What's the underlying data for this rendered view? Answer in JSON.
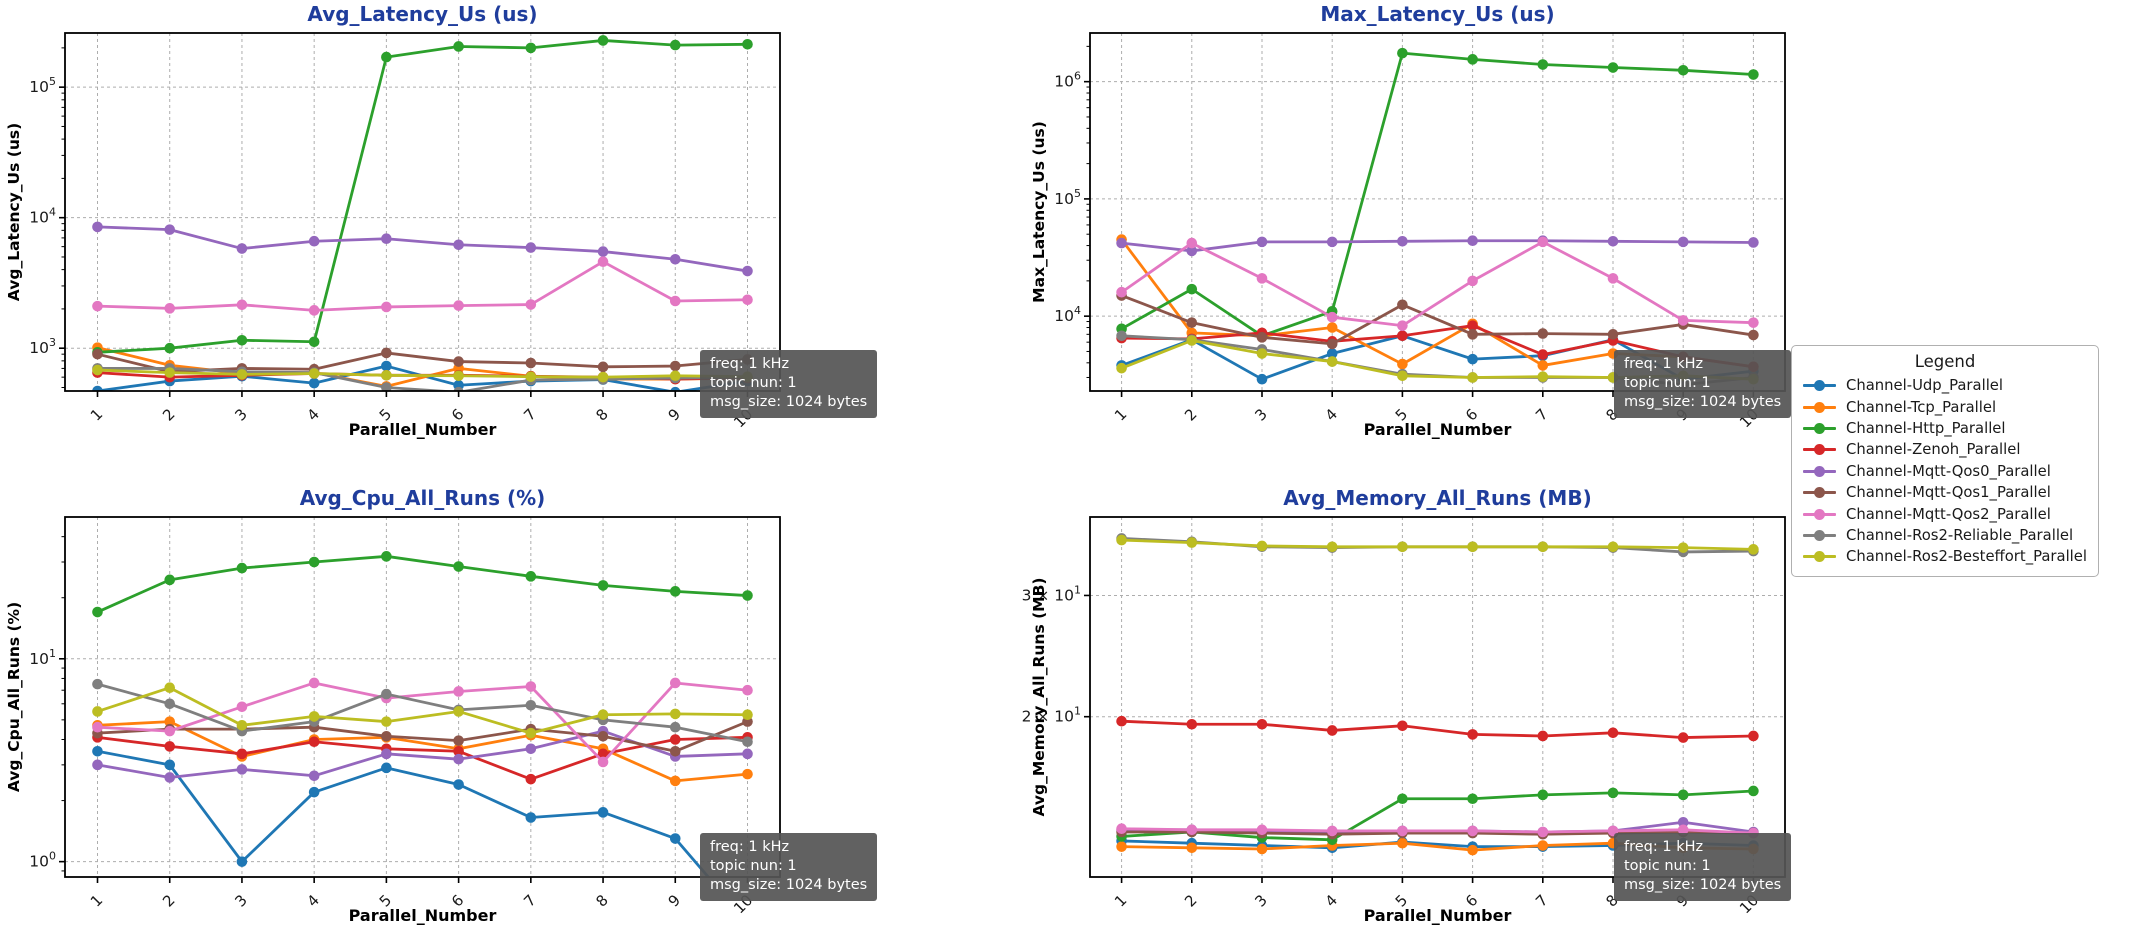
{
  "colors": {
    "title": "#1f3d9c",
    "grid": "#adadad",
    "spine": "#000000",
    "tick_text": "#1a1a1a",
    "annotation_bg": "#555555",
    "annotation_text": "#ffffff",
    "legend_border": "#b0b0b0"
  },
  "legend": {
    "title": "Legend",
    "entries": [
      {
        "label": "Channel-Udp_Parallel",
        "color": "#1f77b4"
      },
      {
        "label": "Channel-Tcp_Parallel",
        "color": "#ff7f0e"
      },
      {
        "label": "Channel-Http_Parallel",
        "color": "#2ca02c"
      },
      {
        "label": "Channel-Zenoh_Parallel",
        "color": "#d62728"
      },
      {
        "label": "Channel-Mqtt-Qos0_Parallel",
        "color": "#9467bd"
      },
      {
        "label": "Channel-Mqtt-Qos1_Parallel",
        "color": "#8c564b"
      },
      {
        "label": "Channel-Mqtt-Qos2_Parallel",
        "color": "#e377c2"
      },
      {
        "label": "Channel-Ros2-Reliable_Parallel",
        "color": "#7f7f7f"
      },
      {
        "label": "Channel-Ros2-Besteffort_Parallel",
        "color": "#bcbd22"
      }
    ]
  },
  "annotation": {
    "lines": [
      "freq: 1 kHz",
      "topic nun: 1",
      "msg_size: 1024 bytes"
    ]
  },
  "chart_data": [
    {
      "type": "line",
      "title": "Avg_Latency_Us  (us)",
      "ylabel": "Avg_Latency_Us (us)",
      "xlabel": "Parallel_Number",
      "yscale": "log",
      "grid": true,
      "legend_position": "outside-right",
      "x": [
        1,
        2,
        3,
        4,
        5,
        6,
        7,
        8,
        9,
        10
      ],
      "ylim": [
        470,
        260000
      ],
      "yticks": [
        {
          "v": 1000,
          "label": "10",
          "sup": "3"
        },
        {
          "v": 10000,
          "label": "10",
          "sup": "4"
        },
        {
          "v": 100000,
          "label": "10",
          "sup": "5"
        }
      ],
      "series": [
        {
          "name": "Channel-Udp_Parallel",
          "values": [
            470,
            560,
            610,
            540,
            730,
            520,
            560,
            575,
            460,
            560
          ]
        },
        {
          "name": "Channel-Tcp_Parallel",
          "values": [
            1010,
            740,
            640,
            650,
            510,
            700,
            610,
            580,
            580,
            590
          ]
        },
        {
          "name": "Channel-Http_Parallel",
          "values": [
            930,
            1000,
            1150,
            1120,
            170000,
            205000,
            200000,
            228000,
            210000,
            213000
          ]
        },
        {
          "name": "Channel-Zenoh_Parallel",
          "values": [
            650,
            600,
            620,
            640,
            620,
            620,
            610,
            600,
            580,
            595
          ]
        },
        {
          "name": "Channel-Mqtt-Qos0_Parallel",
          "values": [
            8500,
            8100,
            5800,
            6600,
            6900,
            6200,
            5900,
            5500,
            4800,
            3900
          ]
        },
        {
          "name": "Channel-Mqtt-Qos1_Parallel",
          "values": [
            900,
            660,
            700,
            690,
            920,
            790,
            770,
            720,
            730,
            820
          ]
        },
        {
          "name": "Channel-Mqtt-Qos2_Parallel",
          "values": [
            2100,
            2020,
            2150,
            1950,
            2070,
            2120,
            2160,
            4600,
            2300,
            2350
          ]
        },
        {
          "name": "Channel-Ros2-Reliable_Parallel",
          "values": [
            700,
            700,
            660,
            650,
            500,
            460,
            570,
            580,
            590,
            600
          ]
        },
        {
          "name": "Channel-Ros2-Besteffort_Parallel",
          "values": [
            680,
            650,
            630,
            640,
            620,
            615,
            605,
            600,
            615,
            605
          ]
        }
      ]
    },
    {
      "type": "line",
      "title": "Max_Latency_Us  (us)",
      "ylabel": "Max_Latency_Us (us)",
      "xlabel": "Parallel_Number",
      "yscale": "log",
      "grid": true,
      "legend_position": "outside-right",
      "x": [
        1,
        2,
        3,
        4,
        5,
        6,
        7,
        8,
        9,
        10
      ],
      "ylim": [
        2300,
        2600000
      ],
      "yticks": [
        {
          "v": 10000,
          "label": "10",
          "sup": "4"
        },
        {
          "v": 100000,
          "label": "10",
          "sup": "5"
        },
        {
          "v": 1000000,
          "label": "10",
          "sup": "6"
        }
      ],
      "series": [
        {
          "name": "Channel-Udp_Parallel",
          "values": [
            3800,
            6300,
            2900,
            4800,
            6800,
            4300,
            4600,
            6300,
            2900,
            3400
          ]
        },
        {
          "name": "Channel-Tcp_Parallel",
          "values": [
            45000,
            7200,
            6800,
            8000,
            3900,
            8600,
            3800,
            4800,
            4500,
            3700
          ]
        },
        {
          "name": "Channel-Http_Parallel",
          "values": [
            7800,
            17000,
            6800,
            11000,
            1750000,
            1550000,
            1400000,
            1320000,
            1250000,
            1150000
          ]
        },
        {
          "name": "Channel-Zenoh_Parallel",
          "values": [
            6500,
            6400,
            7200,
            6100,
            6800,
            8300,
            4700,
            6200,
            4500,
            3700
          ]
        },
        {
          "name": "Channel-Mqtt-Qos0_Parallel",
          "values": [
            42000,
            36000,
            43000,
            43000,
            43500,
            44000,
            44000,
            43500,
            43000,
            42500
          ]
        },
        {
          "name": "Channel-Mqtt-Qos1_Parallel",
          "values": [
            15000,
            8800,
            6600,
            5800,
            12500,
            7000,
            7100,
            7000,
            8500,
            6900
          ]
        },
        {
          "name": "Channel-Mqtt-Qos2_Parallel",
          "values": [
            16000,
            42000,
            21000,
            9800,
            8300,
            20000,
            43000,
            21000,
            9200,
            8800
          ]
        },
        {
          "name": "Channel-Ros2-Reliable_Parallel",
          "values": [
            6800,
            6300,
            5200,
            4100,
            3200,
            3000,
            3000,
            3000,
            2600,
            3000
          ]
        },
        {
          "name": "Channel-Ros2-Besteffort_Parallel",
          "values": [
            3600,
            6200,
            4800,
            4100,
            3100,
            3000,
            3050,
            3000,
            3100,
            2900
          ]
        }
      ]
    },
    {
      "type": "line",
      "title": "Avg_Cpu_All_Runs  (%)",
      "ylabel": "Avg_Cpu_All_Runs (%)",
      "xlabel": "Parallel_Number",
      "yscale": "log",
      "grid": true,
      "legend_position": "outside-right",
      "x": [
        1,
        2,
        3,
        4,
        5,
        6,
        7,
        8,
        9,
        10
      ],
      "ylim": [
        0.84,
        50
      ],
      "yticks": [
        {
          "v": 1,
          "label": "10",
          "sup": "0"
        },
        {
          "v": 10,
          "label": "10",
          "sup": "1"
        }
      ],
      "series": [
        {
          "name": "Channel-Udp_Parallel",
          "values": [
            3.5,
            3.0,
            1.0,
            2.2,
            2.9,
            2.4,
            1.65,
            1.75,
            1.3,
            0.5
          ]
        },
        {
          "name": "Channel-Tcp_Parallel",
          "values": [
            4.7,
            4.9,
            3.3,
            4.0,
            4.1,
            3.6,
            4.2,
            3.6,
            2.5,
            2.7
          ]
        },
        {
          "name": "Channel-Http_Parallel",
          "values": [
            17,
            24.5,
            28,
            30,
            32,
            28.5,
            25.5,
            23,
            21.5,
            20.5
          ]
        },
        {
          "name": "Channel-Zenoh_Parallel",
          "values": [
            4.1,
            3.7,
            3.4,
            3.9,
            3.6,
            3.5,
            2.55,
            3.4,
            4.0,
            4.1
          ]
        },
        {
          "name": "Channel-Mqtt-Qos0_Parallel",
          "values": [
            3.0,
            2.6,
            2.85,
            2.65,
            3.4,
            3.2,
            3.6,
            4.4,
            3.3,
            3.4
          ]
        },
        {
          "name": "Channel-Mqtt-Qos1_Parallel",
          "values": [
            4.3,
            4.5,
            4.5,
            4.6,
            4.15,
            3.95,
            4.5,
            4.15,
            3.5,
            4.9
          ]
        },
        {
          "name": "Channel-Mqtt-Qos2_Parallel",
          "values": [
            4.6,
            4.4,
            5.8,
            7.6,
            6.4,
            6.9,
            7.3,
            3.1,
            7.6,
            7.0
          ]
        },
        {
          "name": "Channel-Ros2-Reliable_Parallel",
          "values": [
            7.5,
            6.0,
            4.4,
            4.9,
            6.7,
            5.6,
            5.9,
            5.0,
            4.6,
            3.9
          ]
        },
        {
          "name": "Channel-Ros2-Besteffort_Parallel",
          "values": [
            5.5,
            7.2,
            4.7,
            5.2,
            4.9,
            5.5,
            4.3,
            5.3,
            5.35,
            5.3
          ]
        }
      ]
    },
    {
      "type": "line",
      "title": "Avg_Memory_All_Runs  (MB)",
      "ylabel": "Avg_Memory_All_Runs (MB)",
      "xlabel": "Parallel_Number",
      "yscale": "log",
      "grid": true,
      "legend_position": "outside-right",
      "x": [
        1,
        2,
        3,
        4,
        5,
        6,
        7,
        8,
        9,
        10
      ],
      "ylim": [
        11.7,
        39
      ],
      "yticks": [
        {
          "v": 20,
          "label": "2 × 10",
          "sup": "1"
        },
        {
          "v": 30,
          "label": "3 × 10",
          "sup": "1"
        }
      ],
      "series": [
        {
          "name": "Channel-Udp_Parallel",
          "values": [
            13.2,
            13.1,
            13.0,
            12.9,
            13.15,
            12.95,
            12.95,
            13.0,
            13.1,
            13.0
          ]
        },
        {
          "name": "Channel-Tcp_Parallel",
          "values": [
            12.95,
            12.9,
            12.85,
            13.0,
            13.1,
            12.8,
            13.0,
            13.1,
            12.9,
            12.85
          ]
        },
        {
          "name": "Channel-Http_Parallel",
          "values": [
            13.4,
            13.6,
            13.35,
            13.25,
            15.2,
            15.2,
            15.4,
            15.5,
            15.4,
            15.6
          ]
        },
        {
          "name": "Channel-Zenoh_Parallel",
          "values": [
            19.7,
            19.5,
            19.5,
            19.1,
            19.4,
            18.85,
            18.75,
            18.95,
            18.65,
            18.75
          ]
        },
        {
          "name": "Channel-Mqtt-Qos0_Parallel",
          "values": [
            13.7,
            13.7,
            13.65,
            13.6,
            13.65,
            13.65,
            13.6,
            13.65,
            14.05,
            13.6
          ]
        },
        {
          "name": "Channel-Mqtt-Qos1_Parallel",
          "values": [
            13.6,
            13.6,
            13.55,
            13.5,
            13.55,
            13.55,
            13.5,
            13.55,
            13.6,
            13.55
          ]
        },
        {
          "name": "Channel-Mqtt-Qos2_Parallel",
          "values": [
            13.75,
            13.7,
            13.7,
            13.65,
            13.65,
            13.65,
            13.6,
            13.65,
            13.7,
            13.55
          ]
        },
        {
          "name": "Channel-Ros2-Reliable_Parallel",
          "values": [
            36.3,
            35.9,
            35.3,
            35.2,
            35.3,
            35.3,
            35.3,
            35.2,
            34.7,
            34.8
          ]
        },
        {
          "name": "Channel-Ros2-Besteffort_Parallel",
          "values": [
            36.1,
            35.8,
            35.4,
            35.3,
            35.3,
            35.3,
            35.3,
            35.3,
            35.2,
            35.0
          ]
        }
      ]
    }
  ]
}
